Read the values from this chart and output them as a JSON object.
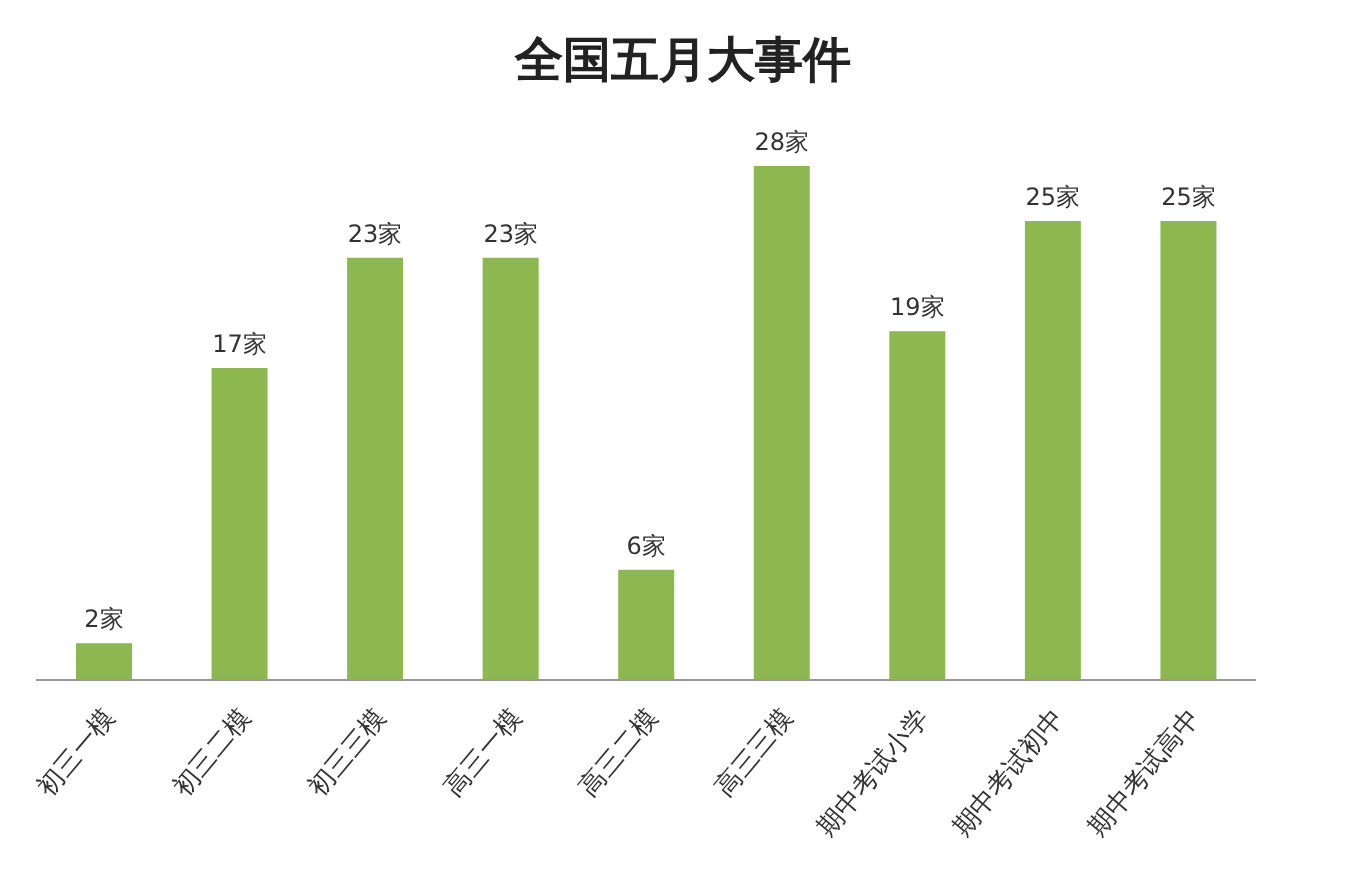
{
  "chart_data": {
    "type": "bar",
    "title": "全国五月大事件",
    "categories": [
      "初三一模",
      "初三二模",
      "初三三模",
      "高三一模",
      "高三二模",
      "高三三模",
      "期中考试小学",
      "期中考试初中",
      "期中考试高中"
    ],
    "values": [
      2,
      17,
      23,
      23,
      6,
      28,
      19,
      25,
      25
    ],
    "value_labels": [
      "2家",
      "17家",
      "23家",
      "23家",
      "6家",
      "28家",
      "19家",
      "25家",
      "25家"
    ],
    "color": "#8cb84f",
    "grid": false,
    "legend": false
  }
}
